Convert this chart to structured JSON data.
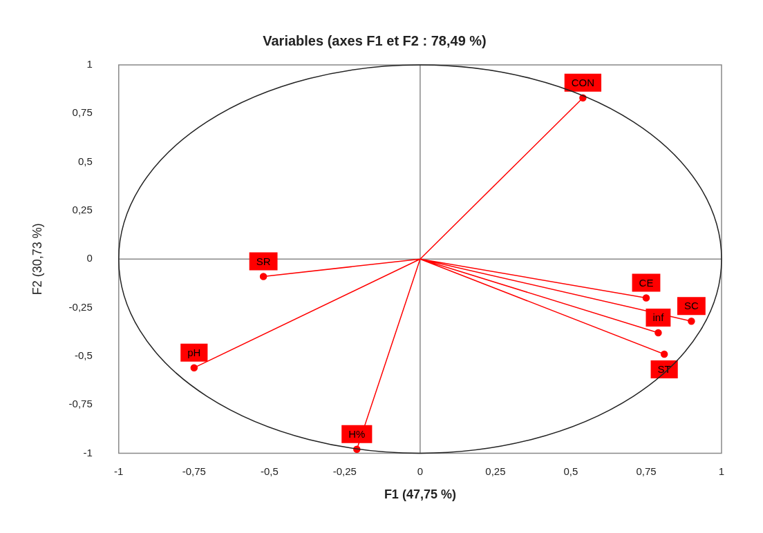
{
  "chart_data": {
    "type": "line",
    "title": "Variables (axes F1 et F2 : 78,49 %)",
    "xlabel": "F1 (47,75 %)",
    "ylabel": "F2 (30,73 %)",
    "xlim": [
      -1,
      1
    ],
    "ylim": [
      -1,
      1
    ],
    "xticks": [
      -1,
      {
        "value": -0.75,
        "label": "-0,75"
      },
      {
        "value": -0.5,
        "label": "-0,5"
      },
      {
        "value": -0.25,
        "label": "-0,25"
      },
      0,
      {
        "value": 0.25,
        "label": "0,25"
      },
      {
        "value": 0.5,
        "label": "0,5"
      },
      {
        "value": 0.75,
        "label": "0,75"
      },
      1
    ],
    "yticks": [
      -1,
      {
        "value": -0.75,
        "label": "-0,75"
      },
      {
        "value": -0.5,
        "label": "-0,5"
      },
      {
        "value": -0.25,
        "label": "-0,25"
      },
      0,
      {
        "value": 0.25,
        "label": "0,25"
      },
      {
        "value": 0.5,
        "label": "0,5"
      },
      {
        "value": 0.75,
        "label": "0,75"
      },
      1
    ],
    "legend": false,
    "marker": "circle",
    "line_style": "solid",
    "series": [
      {
        "color": "#ff0000",
        "x": [
          0,
          0.54,
          0,
          -0.52,
          0,
          -0.75,
          0,
          -0.21,
          0,
          0.75,
          0,
          0.9,
          0,
          0.79,
          0,
          0.81
        ],
        "values": [
          0,
          0.83,
          0,
          -0.09,
          0,
          -0.56,
          0,
          -0.98,
          0,
          -0.2,
          0,
          -0.32,
          0,
          -0.38,
          0,
          -0.49
        ]
      }
    ],
    "annotations": [
      {
        "text": "CON",
        "x": 0.54,
        "y": 0.83
      },
      {
        "text": "SR",
        "x": -0.52,
        "y": -0.09
      },
      {
        "text": "pH",
        "x": -0.75,
        "y": -0.56
      },
      {
        "text": "H%",
        "x": -0.21,
        "y": -0.98
      },
      {
        "text": "CE",
        "x": 0.75,
        "y": -0.2
      },
      {
        "text": "SC",
        "x": 0.9,
        "y": -0.32
      },
      {
        "text": "inf",
        "x": 0.79,
        "y": -0.38
      },
      {
        "text": "ST",
        "x": 0.81,
        "y": -0.49
      }
    ]
  }
}
